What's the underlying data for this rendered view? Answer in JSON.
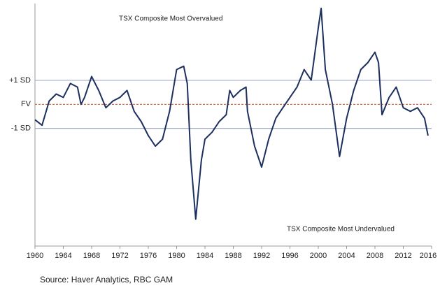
{
  "chart_data": {
    "type": "line",
    "annotations": [
      "TSX Composite Most Overvalued",
      "TSX Composite Most Undervalued"
    ],
    "source": "Source: Haver Analytics, RBC GAM",
    "x": [
      1960,
      1961,
      1962,
      1963,
      1964,
      1965,
      1966,
      1966.5,
      1967,
      1968,
      1969,
      1970,
      1971,
      1972,
      1973,
      1974,
      1975,
      1976,
      1977,
      1978,
      1979,
      1980,
      1981,
      1981.5,
      1982,
      1982.7,
      1983.5,
      1984,
      1985,
      1986,
      1987,
      1987.5,
      1988,
      1989,
      1989.8,
      1990,
      1991,
      1992,
      1993,
      1994,
      1995,
      1996,
      1997,
      1998,
      1999,
      2000,
      2000.4,
      2001,
      2002,
      2003,
      2004,
      2005,
      2006,
      2007,
      2008,
      2008.5,
      2009,
      2010,
      2011,
      2012,
      2013,
      2014,
      2015,
      2015.5
    ],
    "series": [
      {
        "color": "#1c2f5e",
        "values": [
          -0.64,
          -0.87,
          0.14,
          0.43,
          0.29,
          0.87,
          0.72,
          0,
          0.29,
          1.16,
          0.58,
          -0.14,
          0.14,
          0.29,
          0.58,
          -0.29,
          -0.72,
          -1.3,
          -1.74,
          -1.45,
          -0.29,
          1.45,
          1.59,
          0.87,
          -2.32,
          -4.78,
          -2.32,
          -1.45,
          -1.16,
          -0.72,
          -0.43,
          0.58,
          0.29,
          0.58,
          0.72,
          -0.29,
          -1.74,
          -2.61,
          -1.45,
          -0.58,
          -0.14,
          0.29,
          0.72,
          1.45,
          1.01,
          3.19,
          4.0,
          1.45,
          0,
          -2.17,
          -0.58,
          0.58,
          1.45,
          1.74,
          2.17,
          1.74,
          -0.43,
          0.29,
          0.72,
          -0.14,
          -0.29,
          -0.14,
          -0.58,
          -1.3
        ]
      }
    ],
    "xlim": [
      1960,
      2016
    ],
    "xticks": [
      1960,
      1964,
      1968,
      1972,
      1976,
      1980,
      1984,
      1988,
      1992,
      1996,
      2000,
      2004,
      2008,
      2012,
      2016
    ],
    "ylim": [
      -5.9,
      4.2
    ],
    "yticks": [
      {
        "value": 1,
        "label": "+1 SD"
      },
      {
        "value": 0,
        "label": "FV"
      },
      {
        "value": -1,
        "label": "-1 SD"
      }
    ],
    "grid": true,
    "grid_colors": [
      "#a3abcc",
      "#c8643c",
      "#a3abcc"
    ],
    "grid_dash": [
      false,
      true,
      false
    ]
  }
}
